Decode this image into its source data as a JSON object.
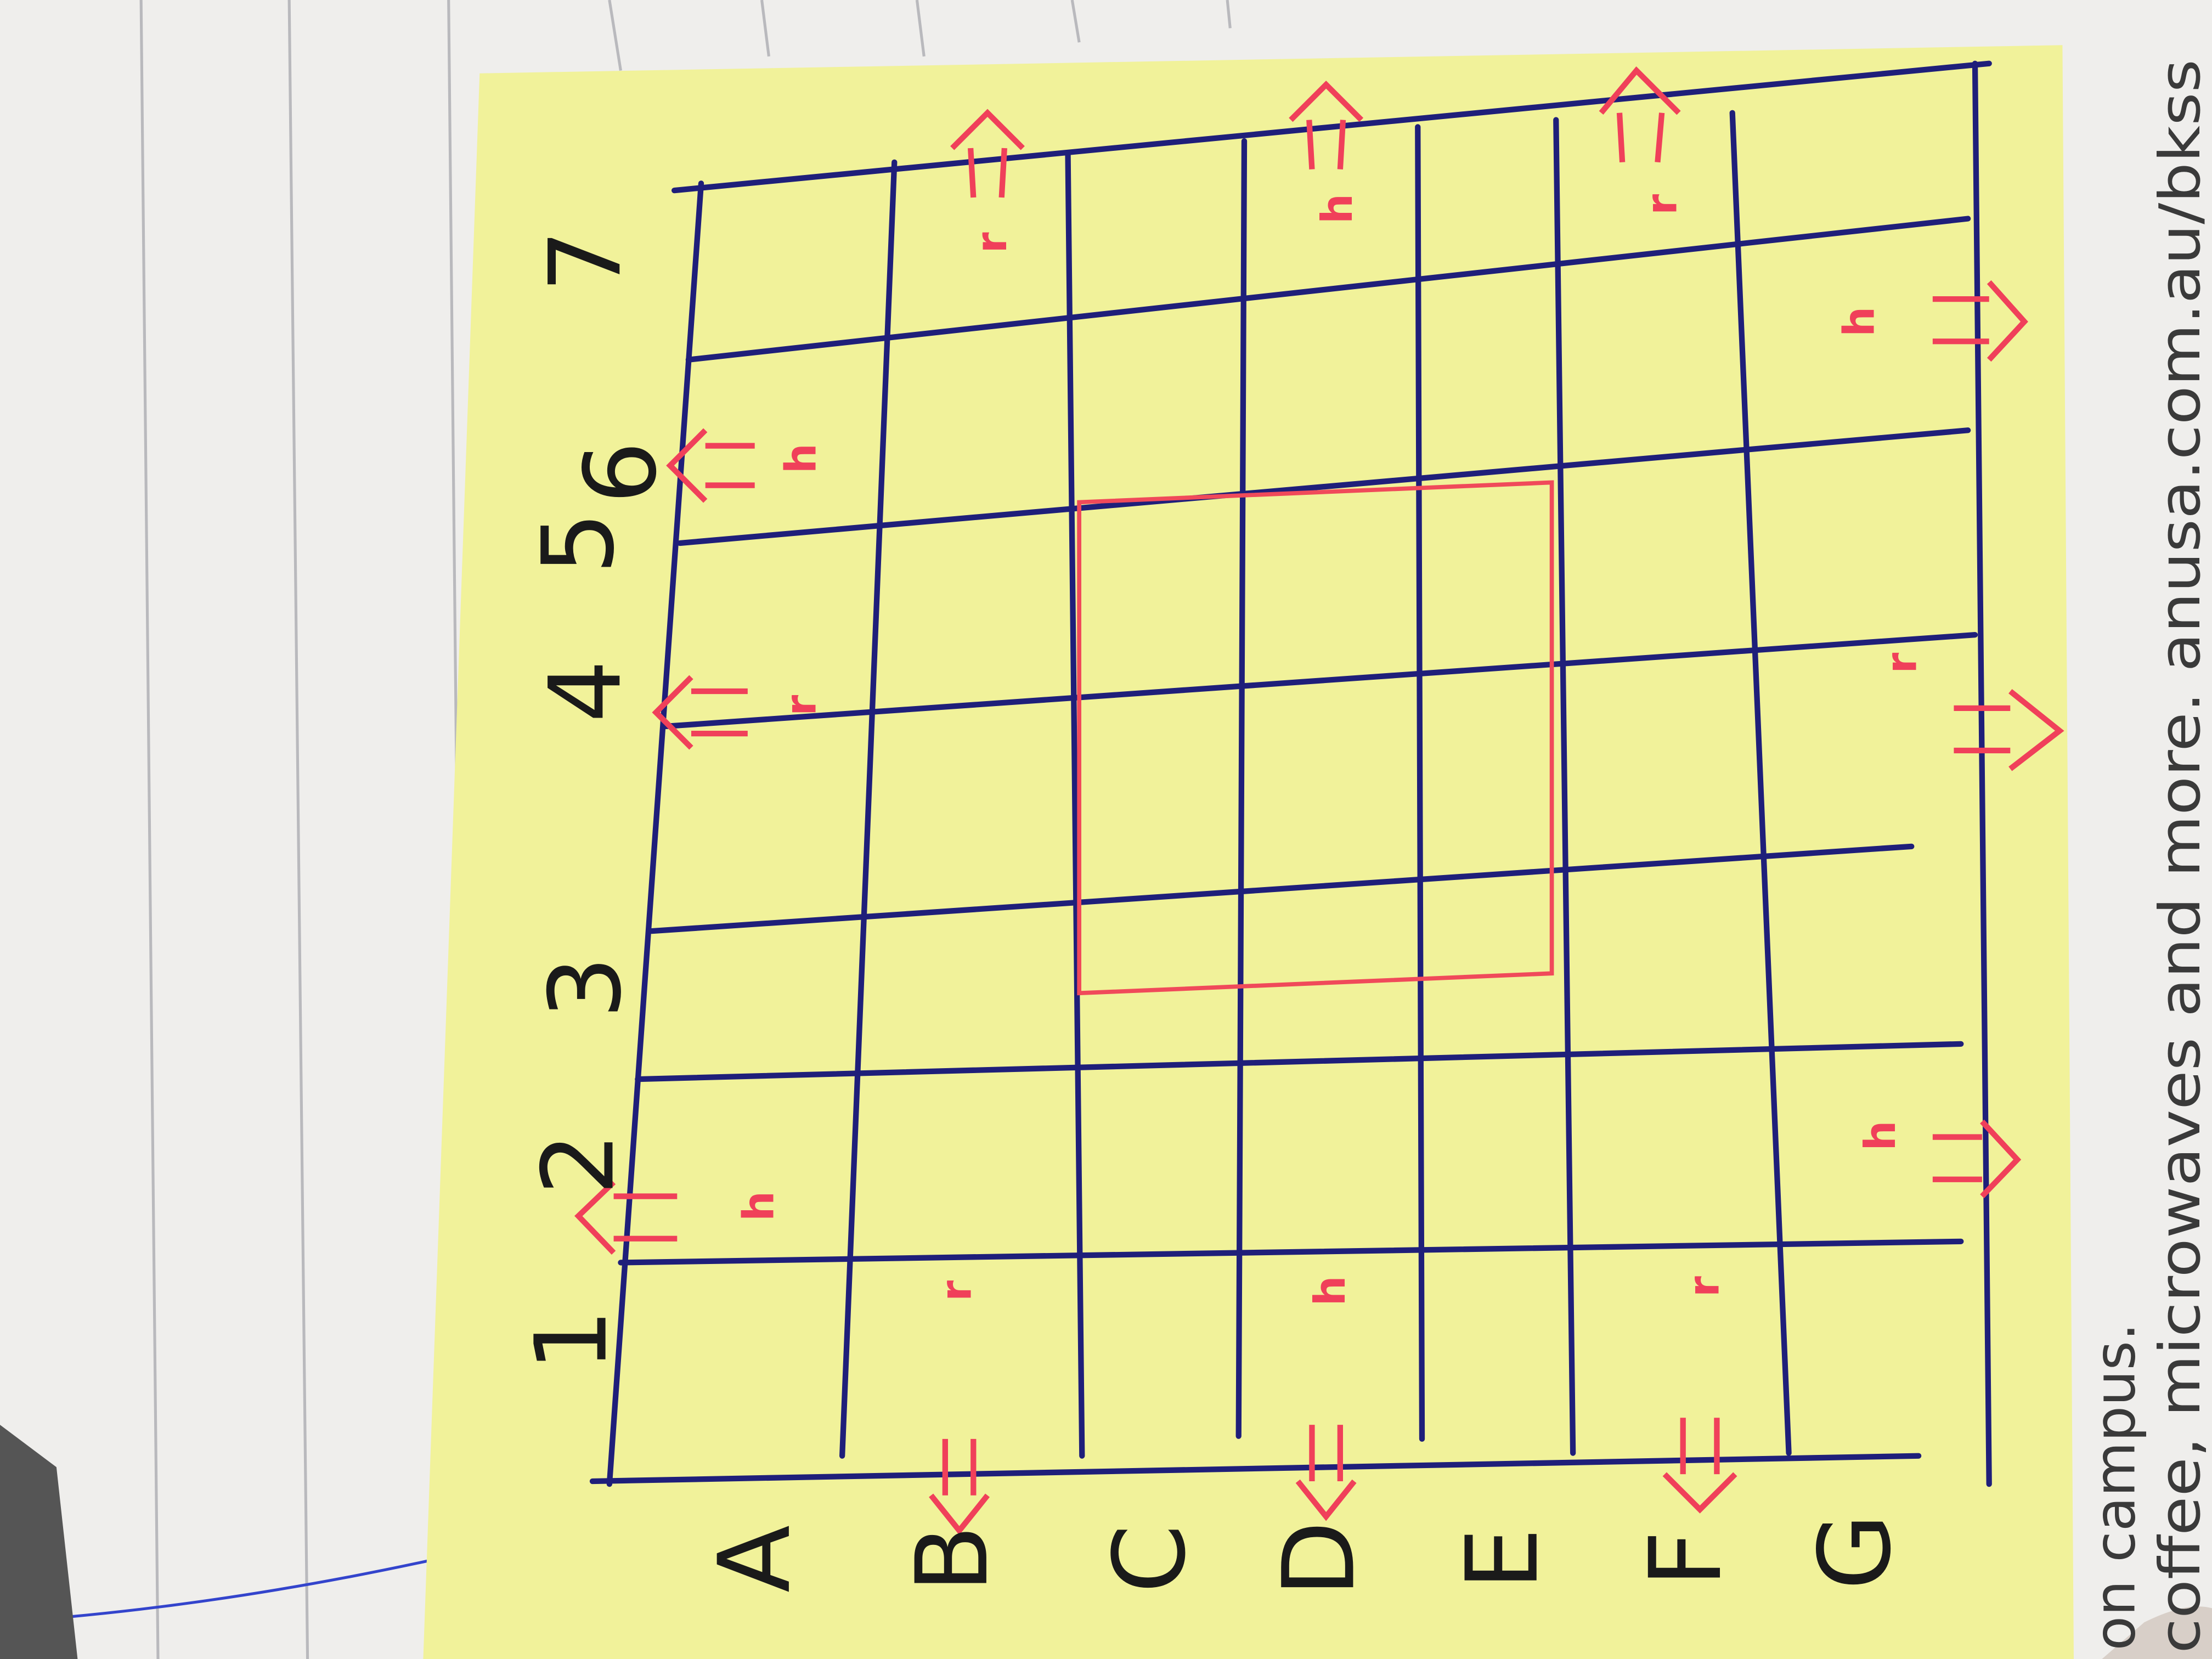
{
  "grid": {
    "row_labels": [
      "1",
      "2",
      "3",
      "4",
      "5",
      "6",
      "7"
    ],
    "column_labels": [
      "A",
      "B",
      "C",
      "D",
      "E",
      "F",
      "G"
    ]
  },
  "marks": [
    "r",
    "h",
    "r",
    "h",
    "h",
    "r",
    "r",
    "h",
    "h",
    "r",
    "h",
    "r"
  ],
  "paper_text": [
    "on campus.",
    "coffee, microwaves and more. anusa.com.au/bkss"
  ]
}
